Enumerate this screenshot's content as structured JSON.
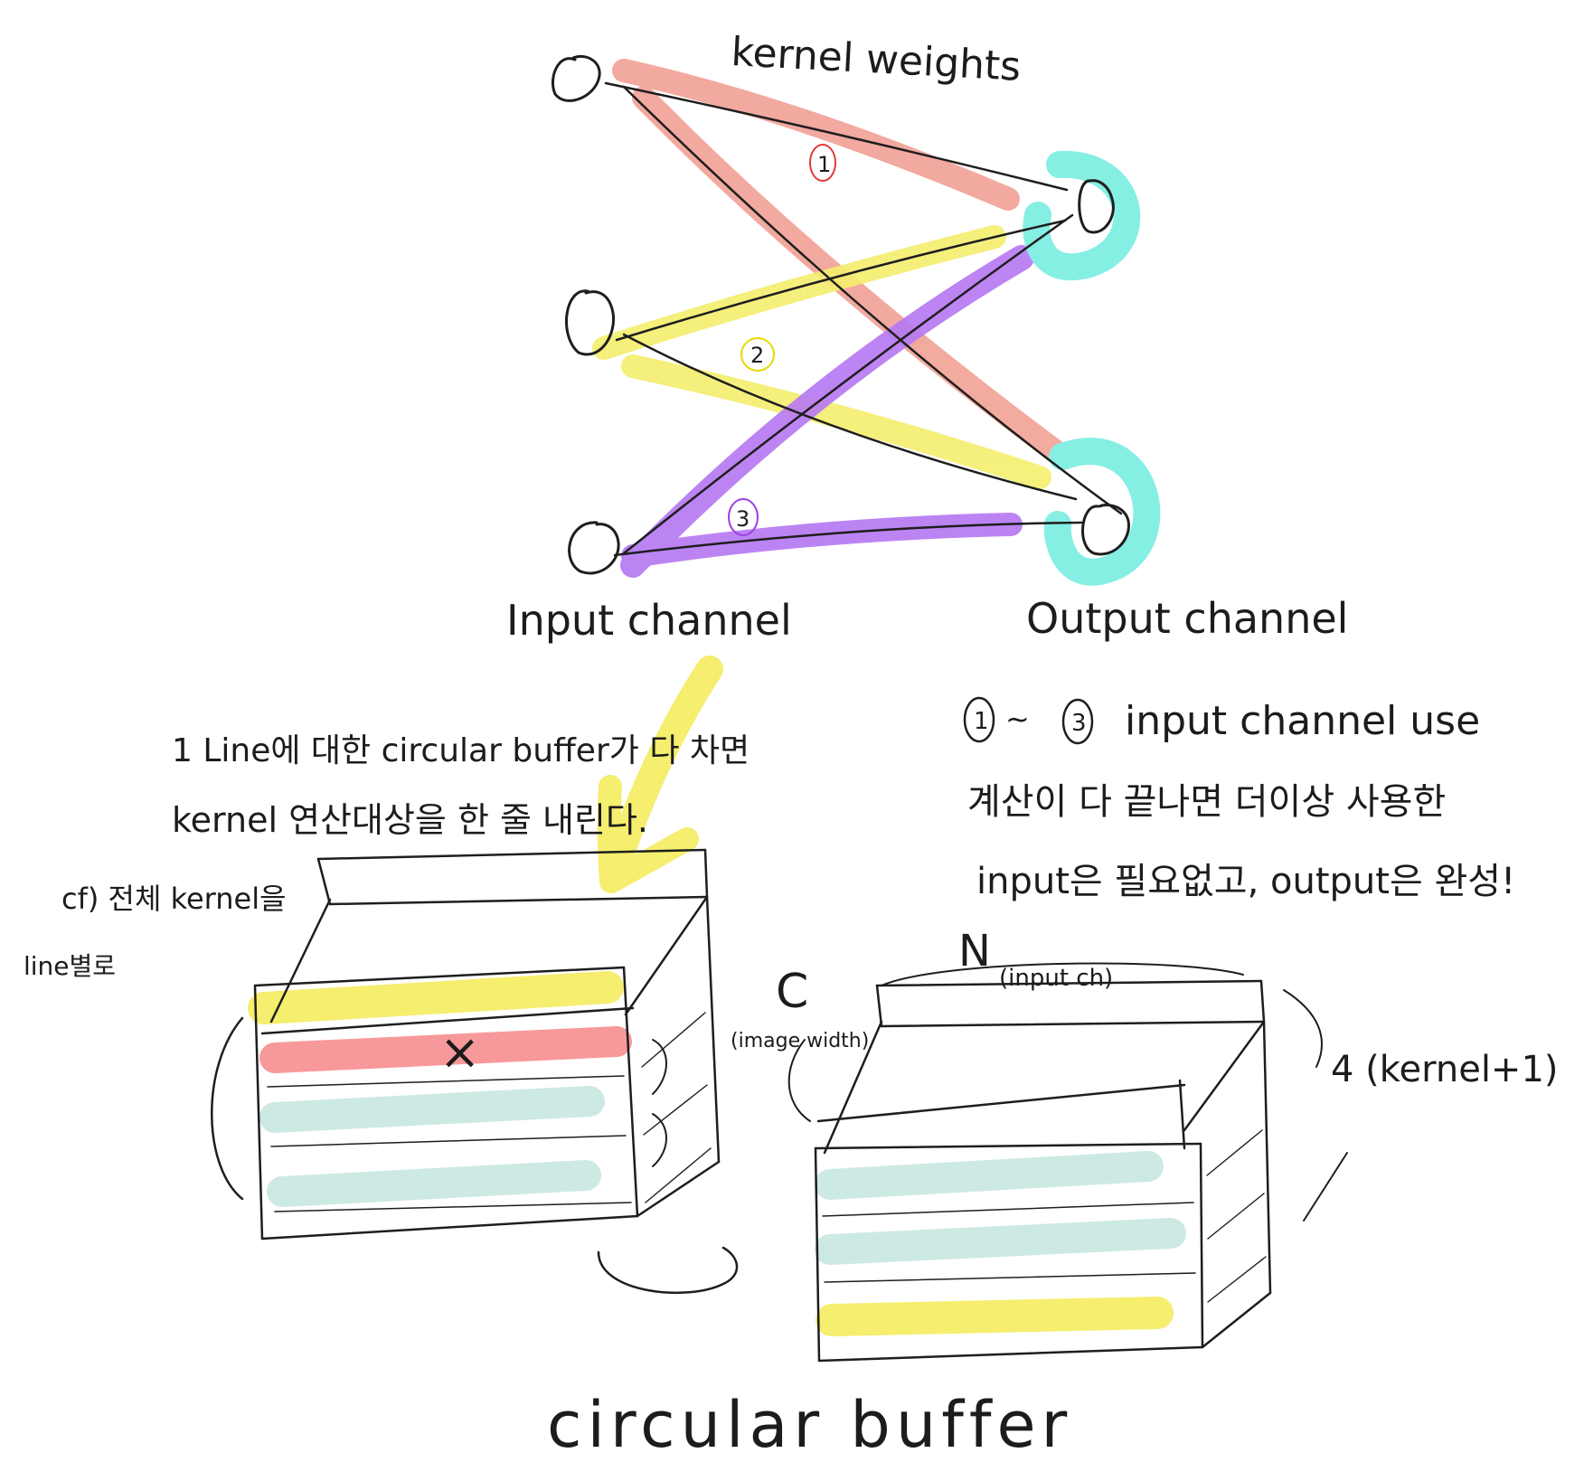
{
  "colors": {
    "salmon": "#f2a59a",
    "yellow": "#f5ee6e",
    "purple": "#b77af2",
    "cyan": "#86efe4",
    "mint": "#cde9e3",
    "red": "#f7999a",
    "ink": "#1e1e1e",
    "marker_red": "#e03b3b",
    "marker_yellow": "#e8d800",
    "marker_purple": "#9b3fe0"
  },
  "labels": {
    "kernel_weights": "kernel weights",
    "input_channel": "Input channel",
    "output_channel": "Output channel",
    "marker_1": "1",
    "marker_2": "2",
    "marker_3": "3",
    "note_left_line1": "1 Line에 대한 circular buffer가 다 차면",
    "note_left_line2": "kernel 연산대상을 한 줄 내린다.",
    "note_cf_line1": "cf) 전체 kernel을",
    "note_cf_line2": "line별로",
    "note_right_line1_a": "1",
    "note_right_line1_tilde": "~",
    "note_right_line1_b": "3",
    "note_right_line1_text": "input channel use",
    "note_right_line2": "계산이 다 끝나면 더이상 사용한",
    "note_right_line3": "input은 필요없고, output은 완성!",
    "dim_c": "C",
    "dim_c_sub": "(image width)",
    "dim_n": "N",
    "dim_n_sub": "(input ch)",
    "dim_depth": "4 (kernel+1)",
    "mark_x": "×",
    "title": "circular buffer"
  }
}
